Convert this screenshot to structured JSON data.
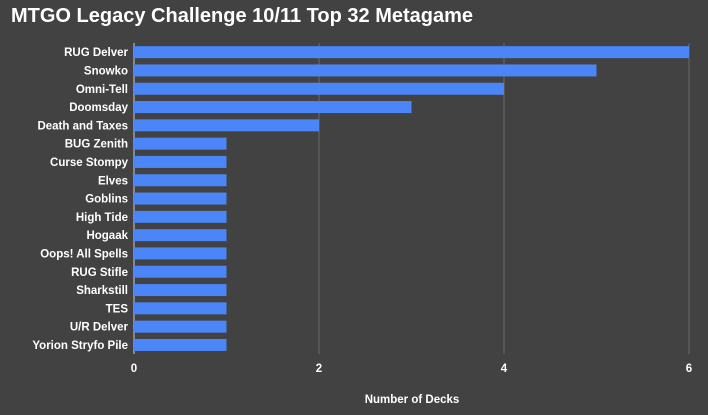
{
  "chart_data": {
    "type": "bar",
    "orientation": "horizontal",
    "title": "MTGO Legacy Challenge 10/11 Top 32 Metagame",
    "xlabel": "Number of Decks",
    "ylabel": "",
    "xlim": [
      0,
      6
    ],
    "xticks": [
      0,
      2,
      4,
      6
    ],
    "grid": true,
    "bar_color": "#4a86f7",
    "background_color": "#424242",
    "categories": [
      "RUG Delver",
      "Snowko",
      "Omni-Tell",
      "Doomsday",
      "Death and Taxes",
      "BUG Zenith",
      "Curse Stompy",
      "Elves",
      "Goblins",
      "High Tide",
      "Hogaak",
      "Oops! All Spells",
      "RUG Stifle",
      "Sharkstill",
      "TES",
      "U/R Delver",
      "Yorion Stryfo Pile"
    ],
    "values": [
      6,
      5,
      4,
      3,
      2,
      1,
      1,
      1,
      1,
      1,
      1,
      1,
      1,
      1,
      1,
      1,
      1
    ]
  }
}
